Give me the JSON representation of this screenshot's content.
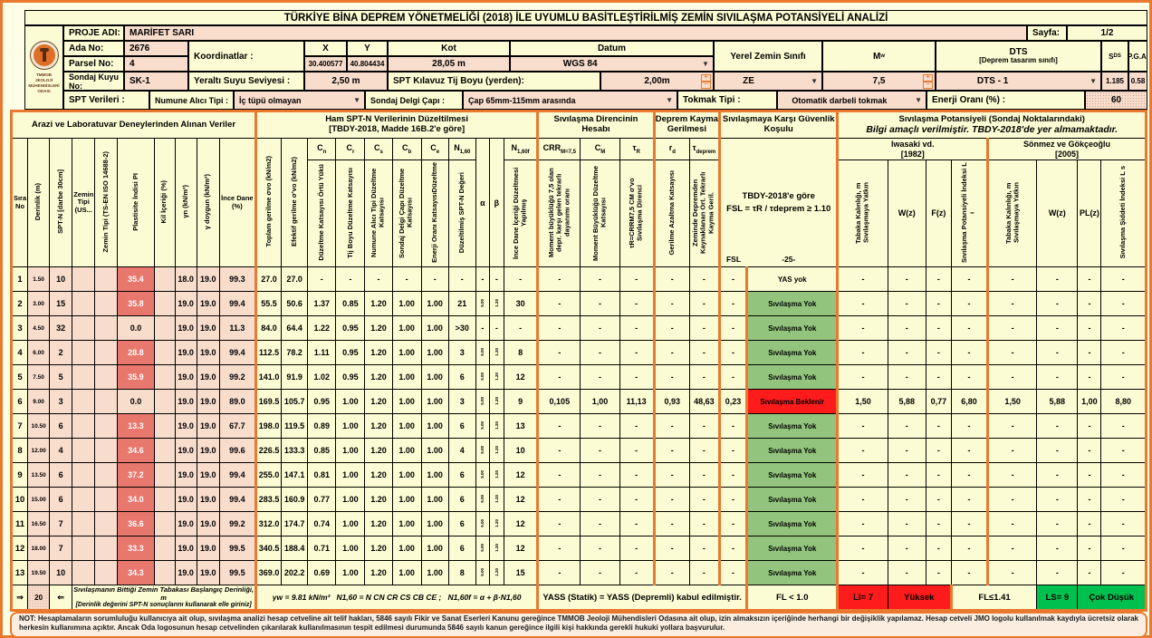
{
  "title": "TÜRKİYE BİNA DEPREM YÖNETMELİĞİ (2018) İLE UYUMLU BASİTLEŞTİRİLMİŞ ZEMİN SIVILAŞMA POTANSİYELİ ANALİZİ",
  "logo": {
    "line1": "TMMOB",
    "line2": "JEOLOJİ MÜHENDİSLERİ",
    "line3": "ODASI"
  },
  "header": {
    "sayfa_label": "Sayfa:",
    "sayfa_value": "1/2",
    "proje_label": "PROJE ADI:",
    "proje": "MARİFET SARI",
    "ada_label": "Ada No:",
    "ada": "2676",
    "parsel_label": "Parsel No:",
    "parsel": "4",
    "koord_label": "Koordinatlar :",
    "x_label": "X",
    "y_label": "Y",
    "x": "30.400577",
    "y": "40.804434",
    "kot_label": "Kot",
    "kot": "28,05 m",
    "datum_label": "Datum",
    "datum": "WGS 84",
    "sondaj_label": "Sondaj Kuyu No:",
    "sondaj": "SK-1",
    "yss_label": "Yeraltı Suyu Seviyesi :",
    "yss": "2,50 m",
    "tij_label": "SPT Kılavuz Tij Boyu (yerden):",
    "tij": "2,00m",
    "yzs_label": "Yerel Zemin Sınıfı",
    "yzs": "ZE",
    "mw_main": "M",
    "mw_sub": "w",
    "mw": "7,5",
    "dts_label": "DTS",
    "dts_sub": "[Deprem tasarım sınıfı]",
    "dts": "DTS - 1",
    "sds_main": "S",
    "sds_sub": "DS",
    "sds": "1.185",
    "pga_label": "P.G.A.",
    "pga": "0.58",
    "sptv_label": "SPT Verileri :",
    "numune_label": "Numune Alıcı Tipi :",
    "numune": "İç tüpü olmayan",
    "delgi_label": "Sondaj Delgi Çapı :",
    "delgi": "Çap 65mm-115mm arasında",
    "tokmak_label": "Tokmak Tipi :",
    "tokmak": "Otomatik darbeli tokmak",
    "enerji_label": "Enerji Oranı (%) :",
    "enerji": "60"
  },
  "thead": {
    "g_arazi": "Arazi ve Laboratuvar Deneylerinden Alınan Veriler",
    "g_ham1": "Ham SPT-N Verilerinin Düzeltilmesi",
    "g_ham2": "[TBDY-2018, Madde 16B.2'e göre]",
    "g_direnc": "Sıvılaşma Direncinin Hesabı",
    "g_deprem": "Deprem Kayma Gerilmesi",
    "g_guven": "Sıvılaşmaya Karşı Güvenlik Koşulu",
    "g_pot": "Sıvılaşma Potansiyeli (Sondaj Noktalarındaki)",
    "g_pot_note": "Bilgi amaçlı verilmiştir. TBDY-2018'de yer almamaktadır.",
    "iwasaki1": "Iwasaki vd.",
    "iwasaki2": "[1982]",
    "sonmez1": "Sönmez ve Gökçeoğlu",
    "sonmez2": "[2005]"
  },
  "syms": {
    "cn": [
      "C",
      "n"
    ],
    "cr": [
      "C",
      "r"
    ],
    "cs": [
      "C",
      "s"
    ],
    "cb": [
      "C",
      "b"
    ],
    "ce": [
      "C",
      "e"
    ],
    "n160": [
      "N",
      "1,60"
    ],
    "n160f": [
      "N",
      "1,60f"
    ],
    "crr": [
      "CRR",
      "M=7,5"
    ],
    "cm": [
      "C",
      "M"
    ],
    "tr": [
      "τ",
      "R"
    ],
    "rd": [
      "r",
      "d"
    ],
    "td": [
      "τ",
      "deprem"
    ],
    "alpha": "α",
    "beta": "β"
  },
  "guard": {
    "line1": "TBDY-2018'e göre",
    "line2": "FSL = τR / τdeprem ≥ 1.10",
    "fsl": "FSL",
    "page": "-25-"
  },
  "cols": {
    "sira": "Sıra No",
    "derinlik": "Derinlik (m)",
    "sptn": "SPT-N [darbe 30cm]",
    "zemin_us": "Zemin Tipi (US...",
    "zemin_ts": "Zemin Tipi (TS-EN ISO 14688-2)",
    "pi": "Plastisite İndisi PI",
    "kil": "Kil İçeriği (%)",
    "gn": "γn (kN/m³)",
    "gdoygun": "γ doygun (kN/m³)",
    "ince": "İnce Dane (%)",
    "sv": "Toplam gerilme σvo (kN/m2)",
    "sve": "Efektif gerilme σ'vo (kN/m2)",
    "cn_l": "Düzeltme Katsayısı Örtü Yükü",
    "cr_l": "Tij Boyu Düzeltme Katsayısı",
    "cs_l": "Numune Alıcı Tipi Düzeltme Katsayısı",
    "cb_l": "Sondaj Delgi Çapı Düzeltme Katsayısı",
    "ce_l": "Enerji Oranı KatsayısıDüzeltme",
    "n160_l": "Düzeltilmiş SPT-N Değeri",
    "n160f_l": "İnce Dane İçeriği Düzeltmesi Yapılmış",
    "crr_l": "Moment büyüklüğü 7,5 olan depr. karşı gelen tekrarlı dayanımı oranı",
    "cm_l": "Moment Büyüklüğü Düzeltme Katsayısı",
    "tr_l": "τR=CRRM7,5 CM σ'vo Sıvılaşma Direnci",
    "rd_l": "Gerilme Azaltma Katsayısı",
    "td_l": "Zeminde Depremden Kaynaklanan Ort. Tekrarlı Kayma Geril.",
    "tabaka": "Tabaka Kalınlığı, m Sıvılaşmaya Yatkın",
    "wz": "W(z)",
    "fz": "F(z)",
    "li": "Sıvılaşma Potansiyeli İndeksi L ı",
    "tabaka2": "Tabaka Kalınlığı, m Sıvılaşmaya Yatkın",
    "wz2": "W(z)",
    "plz": "PL(z)",
    "ls": "Sıvılaşma Şiddeti İndeksi L s"
  },
  "table": {
    "rows": [
      [
        "1",
        "1.50",
        "10",
        "",
        "",
        "35.4",
        "",
        "18.0",
        "19.0",
        "99.3",
        "27.0",
        "27.0",
        "-",
        "-",
        "-",
        "-",
        "-",
        "-",
        "-",
        "-",
        "-",
        "-",
        "-",
        "-",
        "-",
        "-",
        "-",
        "YAS yok",
        "-",
        "-",
        "-",
        "-",
        "-",
        "-",
        "-",
        "-"
      ],
      [
        "2",
        "3.00",
        "15",
        "",
        "",
        "35.8",
        "",
        "19.0",
        "19.0",
        "99.4",
        "55.5",
        "50.6",
        "1.37",
        "0.85",
        "1.20",
        "1.00",
        "1.00",
        "21",
        "5.00",
        "1.20",
        "30",
        "-",
        "-",
        "-",
        "-",
        "-",
        "-",
        "Sıvılaşma Yok",
        "-",
        "-",
        "-",
        "-",
        "-",
        "-",
        "-",
        "-"
      ],
      [
        "3",
        "4.50",
        "32",
        "",
        "",
        "0.0",
        "",
        "19.0",
        "19.0",
        "11.3",
        "84.0",
        "64.4",
        "1.22",
        "0.95",
        "1.20",
        "1.00",
        "1.00",
        ">30",
        "-",
        "-",
        "-",
        "-",
        "-",
        "-",
        "-",
        "-",
        "-",
        "Sıvılaşma Yok",
        "-",
        "-",
        "-",
        "-",
        "-",
        "-",
        "-",
        "-"
      ],
      [
        "4",
        "6.00",
        "2",
        "",
        "",
        "28.8",
        "",
        "19.0",
        "19.0",
        "99.4",
        "112.5",
        "78.2",
        "1.11",
        "0.95",
        "1.20",
        "1.00",
        "1.00",
        "3",
        "5.00",
        "1.20",
        "8",
        "-",
        "-",
        "-",
        "-",
        "-",
        "-",
        "Sıvılaşma Yok",
        "-",
        "-",
        "-",
        "-",
        "-",
        "-",
        "-",
        "-"
      ],
      [
        "5",
        "7.50",
        "5",
        "",
        "",
        "35.9",
        "",
        "19.0",
        "19.0",
        "99.2",
        "141.0",
        "91.9",
        "1.02",
        "0.95",
        "1.20",
        "1.00",
        "1.00",
        "6",
        "5.00",
        "1.20",
        "12",
        "-",
        "-",
        "-",
        "-",
        "-",
        "-",
        "Sıvılaşma Yok",
        "-",
        "-",
        "-",
        "-",
        "-",
        "-",
        "-",
        "-"
      ],
      [
        "6",
        "9.00",
        "3",
        "",
        "",
        "0.0",
        "",
        "19.0",
        "19.0",
        "89.0",
        "169.5",
        "105.7",
        "0.95",
        "1.00",
        "1.20",
        "1.00",
        "1.00",
        "3",
        "5.00",
        "1.20",
        "9",
        "0,105",
        "1,00",
        "11,13",
        "0,93",
        "48,63",
        "0,23",
        "Sıvılaşma Beklenir",
        "1,50",
        "5,88",
        "0,77",
        "6,80",
        "1,50",
        "5,88",
        "1,00",
        "8,80"
      ],
      [
        "7",
        "10.50",
        "6",
        "",
        "",
        "13.3",
        "",
        "19.0",
        "19.0",
        "67.7",
        "198.0",
        "119.5",
        "0.89",
        "1.00",
        "1.20",
        "1.00",
        "1.00",
        "6",
        "5.00",
        "1.20",
        "13",
        "-",
        "-",
        "-",
        "-",
        "-",
        "-",
        "Sıvılaşma Yok",
        "-",
        "-",
        "-",
        "-",
        "-",
        "-",
        "-",
        "-"
      ],
      [
        "8",
        "12.00",
        "4",
        "",
        "",
        "34.6",
        "",
        "19.0",
        "19.0",
        "99.6",
        "226.5",
        "133.3",
        "0.85",
        "1.00",
        "1.20",
        "1.00",
        "1.00",
        "4",
        "5.00",
        "1.20",
        "10",
        "-",
        "-",
        "-",
        "-",
        "-",
        "-",
        "Sıvılaşma Yok",
        "-",
        "-",
        "-",
        "-",
        "-",
        "-",
        "-",
        "-"
      ],
      [
        "9",
        "13.50",
        "6",
        "",
        "",
        "37.2",
        "",
        "19.0",
        "19.0",
        "99.4",
        "255.0",
        "147.1",
        "0.81",
        "1.00",
        "1.20",
        "1.00",
        "1.00",
        "6",
        "5.00",
        "1.20",
        "12",
        "-",
        "-",
        "-",
        "-",
        "-",
        "-",
        "Sıvılaşma Yok",
        "-",
        "-",
        "-",
        "-",
        "-",
        "-",
        "-",
        "-"
      ],
      [
        "10",
        "15.00",
        "6",
        "",
        "",
        "34.0",
        "",
        "19.0",
        "19.0",
        "99.4",
        "283.5",
        "160.9",
        "0.77",
        "1.00",
        "1.20",
        "1.00",
        "1.00",
        "6",
        "5.00",
        "1.20",
        "12",
        "-",
        "-",
        "-",
        "-",
        "-",
        "-",
        "Sıvılaşma Yok",
        "-",
        "-",
        "-",
        "-",
        "-",
        "-",
        "-",
        "-"
      ],
      [
        "11",
        "16.50",
        "7",
        "",
        "",
        "36.6",
        "",
        "19.0",
        "19.0",
        "99.2",
        "312.0",
        "174.7",
        "0.74",
        "1.00",
        "1.20",
        "1.00",
        "1.00",
        "6",
        "5.00",
        "1.20",
        "12",
        "-",
        "-",
        "-",
        "-",
        "-",
        "-",
        "Sıvılaşma Yok",
        "-",
        "-",
        "-",
        "-",
        "-",
        "-",
        "-",
        "-"
      ],
      [
        "12",
        "18.00",
        "7",
        "",
        "",
        "33.3",
        "",
        "19.0",
        "19.0",
        "99.5",
        "340.5",
        "188.4",
        "0.71",
        "1.00",
        "1.20",
        "1.00",
        "1.00",
        "6",
        "5.00",
        "1.20",
        "12",
        "-",
        "-",
        "-",
        "-",
        "-",
        "-",
        "Sıvılaşma Yok",
        "-",
        "-",
        "-",
        "-",
        "-",
        "-",
        "-",
        "-"
      ],
      [
        "13",
        "19.50",
        "10",
        "",
        "",
        "34.3",
        "",
        "19.0",
        "19.0",
        "99.5",
        "369.0",
        "202.2",
        "0.69",
        "1.00",
        "1.20",
        "1.00",
        "1.00",
        "8",
        "5.00",
        "1.20",
        "15",
        "-",
        "-",
        "-",
        "-",
        "-",
        "-",
        "Sıvılaşma Yok",
        "-",
        "-",
        "-",
        "-",
        "-",
        "-",
        "-",
        "-"
      ]
    ],
    "pi_hl": [
      true,
      true,
      false,
      true,
      true,
      false,
      true,
      true,
      true,
      true,
      true,
      true,
      true
    ],
    "status_type": [
      "plain",
      "ok",
      "ok",
      "ok",
      "ok",
      "bad",
      "ok",
      "ok",
      "ok",
      "ok",
      "ok",
      "ok",
      "ok"
    ]
  },
  "bottom": {
    "arrow_right": "⇒",
    "depth": "20",
    "arrow_left": "⇐",
    "depth_label1": "Sıvılaşmanın Bittiği Zemin Tabakası Başlangıç Derinliği, m",
    "depth_label2": "[Derinlik değerini SPT-N sonuçlarını kullanarak elle giriniz]",
    "formula1": "γw = 9.81 kN/m³",
    "formula2": "N1,60 = N CN CR CS CB CE ;",
    "formula3": "N1,60f = α + β·N1,60",
    "yass": "YASS (Statik) = YASS (Depremli) kabul edilmiştir.",
    "fl1": "FL < 1.0",
    "li": "LI= 7",
    "li_class": "Yüksek",
    "fl2": "FL≤1.41",
    "ls": "LS= 9",
    "ls_class": "Çok Düşük"
  },
  "footer_note": "NOT: Hesaplamaların sorumluluğu kullanıcıya ait olup, sıvılaşma analizi hesap cetveline ait telif hakları, 5846 sayılı Fikir ve Sanat Eserleri Kanunu gereğince TMMOB Jeoloji Mühendisleri Odasına ait olup, izin almaksızın içeriğinde herhangi bir değişiklik yapılamaz. Hesap cetveli JMO logolu kullanılmak kaydıyla ücretsiz olarak herkesin kullanımına açıktır. Ancak Oda logosunun hesap cetvelinden çıkarılarak kullanılmasının tespit edilmesi durumunda 5846 sayılı kanun gereğince ilgili kişi hakkında gerekli hukuki yollara başvurulur."
}
